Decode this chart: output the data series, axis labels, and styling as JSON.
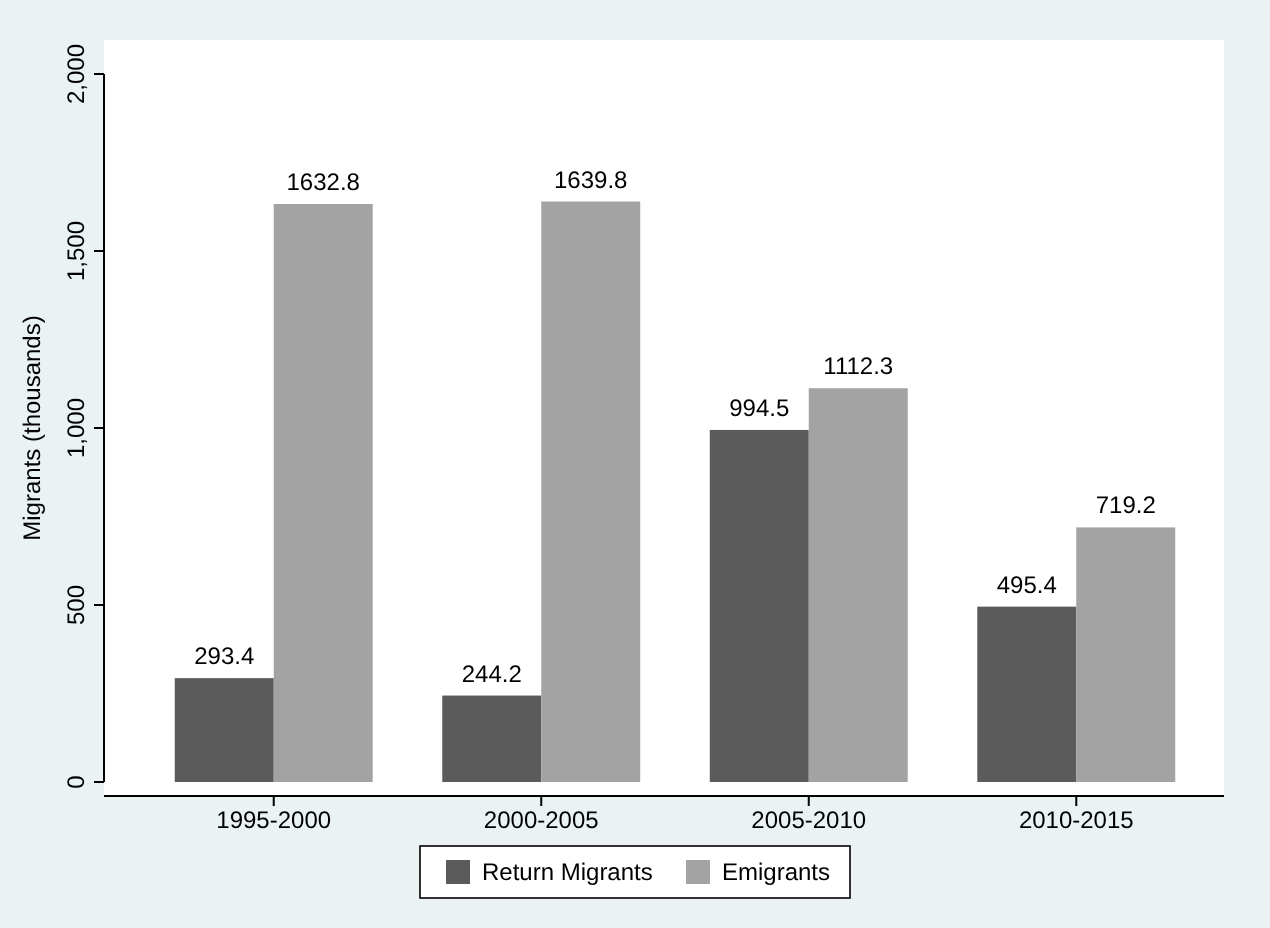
{
  "chart_data": {
    "type": "bar",
    "ylabel": "Migrants (thousands)",
    "categories": [
      "1995-2000",
      "2000-2005",
      "2005-2010",
      "2010-2015"
    ],
    "series": [
      {
        "name": "Return Migrants",
        "color": "#5b5b5b",
        "values": [
          293.4,
          244.2,
          994.5,
          495.4
        ]
      },
      {
        "name": "Emigrants",
        "color": "#a3a3a3",
        "values": [
          1632.8,
          1639.8,
          1112.3,
          719.2
        ]
      }
    ],
    "ylim": [
      0,
      2000
    ],
    "yticks": [
      {
        "value": 0,
        "label": "0"
      },
      {
        "value": 500,
        "label": "500"
      },
      {
        "value": 1000,
        "label": "1,000"
      },
      {
        "value": 1500,
        "label": "1,500"
      },
      {
        "value": 2000,
        "label": "2,000"
      }
    ],
    "data_labels": true,
    "legend": "bottom",
    "grid": false
  }
}
